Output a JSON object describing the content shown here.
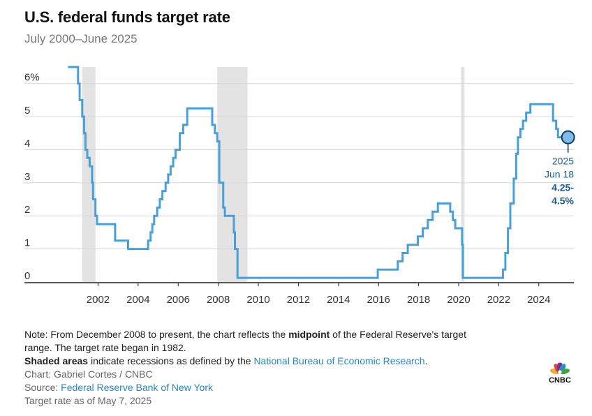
{
  "header": {
    "title": "U.S. federal funds target rate",
    "subtitle": "July 2000–June 2025"
  },
  "chart_data": {
    "type": "line",
    "title": "U.S. federal funds target rate",
    "subtitle": "July 2000–June 2025",
    "xlabel": "",
    "ylabel": "",
    "xlim": [
      1999.3,
      2025.75
    ],
    "ylim": [
      0,
      6.5
    ],
    "y_ticks": [
      {
        "value": 0,
        "label": "0"
      },
      {
        "value": 1,
        "label": "1"
      },
      {
        "value": 2,
        "label": "2"
      },
      {
        "value": 3,
        "label": "3"
      },
      {
        "value": 4,
        "label": "4"
      },
      {
        "value": 5,
        "label": "5"
      },
      {
        "value": 6,
        "label": "6%"
      }
    ],
    "x_ticks": [
      {
        "value": 2002,
        "label": "2002"
      },
      {
        "value": 2004,
        "label": "2004"
      },
      {
        "value": 2006,
        "label": "2006"
      },
      {
        "value": 2008,
        "label": "2008"
      },
      {
        "value": 2010,
        "label": "2010"
      },
      {
        "value": 2012,
        "label": "2012"
      },
      {
        "value": 2014,
        "label": "2014"
      },
      {
        "value": 2016,
        "label": "2016"
      },
      {
        "value": 2018,
        "label": "2018"
      },
      {
        "value": 2020,
        "label": "2020"
      },
      {
        "value": 2022,
        "label": "2022"
      },
      {
        "value": 2024,
        "label": "2024"
      }
    ],
    "grid": true,
    "recessions": [
      {
        "start": 2001.2,
        "end": 2001.87
      },
      {
        "start": 2007.95,
        "end": 2009.46
      },
      {
        "start": 2020.12,
        "end": 2020.29
      }
    ],
    "series": [
      {
        "name": "Federal funds target rate",
        "color": "#4a9fd8",
        "points": [
          [
            2000.5,
            6.5
          ],
          [
            2001.0,
            6.0
          ],
          [
            2001.08,
            5.5
          ],
          [
            2001.21,
            5.0
          ],
          [
            2001.3,
            4.5
          ],
          [
            2001.37,
            4.0
          ],
          [
            2001.46,
            3.75
          ],
          [
            2001.58,
            3.5
          ],
          [
            2001.7,
            3.0
          ],
          [
            2001.75,
            2.5
          ],
          [
            2001.87,
            2.0
          ],
          [
            2001.95,
            1.75
          ],
          [
            2002.85,
            1.25
          ],
          [
            2003.5,
            1.0
          ],
          [
            2004.5,
            1.25
          ],
          [
            2004.62,
            1.5
          ],
          [
            2004.71,
            1.75
          ],
          [
            2004.8,
            2.0
          ],
          [
            2004.95,
            2.25
          ],
          [
            2005.08,
            2.5
          ],
          [
            2005.21,
            2.75
          ],
          [
            2005.37,
            3.0
          ],
          [
            2005.5,
            3.25
          ],
          [
            2005.62,
            3.5
          ],
          [
            2005.75,
            3.75
          ],
          [
            2005.87,
            4.0
          ],
          [
            2006.08,
            4.5
          ],
          [
            2006.25,
            4.75
          ],
          [
            2006.45,
            5.25
          ],
          [
            2007.7,
            4.75
          ],
          [
            2007.83,
            4.5
          ],
          [
            2007.95,
            4.25
          ],
          [
            2008.05,
            3.0
          ],
          [
            2008.25,
            2.25
          ],
          [
            2008.33,
            2.0
          ],
          [
            2008.78,
            1.5
          ],
          [
            2008.83,
            1.0
          ],
          [
            2008.96,
            0.125
          ],
          [
            2015.96,
            0.375
          ],
          [
            2016.96,
            0.625
          ],
          [
            2017.2,
            0.875
          ],
          [
            2017.46,
            1.125
          ],
          [
            2017.96,
            1.375
          ],
          [
            2018.21,
            1.625
          ],
          [
            2018.46,
            1.875
          ],
          [
            2018.7,
            2.125
          ],
          [
            2018.96,
            2.375
          ],
          [
            2019.58,
            2.125
          ],
          [
            2019.71,
            1.875
          ],
          [
            2019.83,
            1.625
          ],
          [
            2020.17,
            1.125
          ],
          [
            2020.21,
            0.125
          ],
          [
            2022.21,
            0.375
          ],
          [
            2022.33,
            0.875
          ],
          [
            2022.46,
            1.625
          ],
          [
            2022.58,
            2.375
          ],
          [
            2022.75,
            3.125
          ],
          [
            2022.87,
            3.875
          ],
          [
            2022.96,
            4.375
          ],
          [
            2023.08,
            4.625
          ],
          [
            2023.21,
            4.875
          ],
          [
            2023.37,
            5.125
          ],
          [
            2023.58,
            5.375
          ],
          [
            2024.71,
            4.875
          ],
          [
            2024.87,
            4.625
          ],
          [
            2024.96,
            4.375
          ],
          [
            2025.46,
            4.375
          ]
        ]
      }
    ],
    "annotation": {
      "x": 2025.46,
      "y": 4.375,
      "year": "2025",
      "date": "Jun 18",
      "value_line1": "4.25-",
      "value_line2": "4.5%"
    }
  },
  "notes": {
    "line1_prefix": "Note: From December 2008 to present, the chart reflects the ",
    "line1_bold": "midpoint",
    "line1_suffix": " of the Federal Reserve's target",
    "line2": "range. The target rate began in 1982.",
    "line3_bold": "Shaded areas",
    "line3_text": " indicate recessions as defined by the ",
    "line3_link": "National Bureau of Economic Research",
    "line3_end": ".",
    "credit": "Chart: Gabriel Cortes / CNBC",
    "source_prefix": "Source: ",
    "source_link": "Federal Reserve Bank of New York",
    "asof": "Target rate as of May 7, 2025"
  },
  "logo": {
    "text": "CNBC",
    "colors": [
      "#f2a93b",
      "#e5412b",
      "#b6317b",
      "#5b3d97",
      "#2c8ccb",
      "#3ea447"
    ]
  }
}
